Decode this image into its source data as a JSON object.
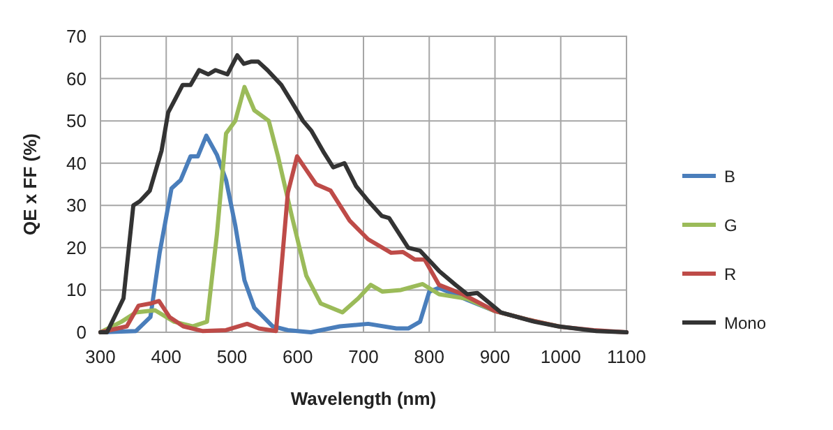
{
  "chart_data": {
    "type": "line",
    "xlabel": "Wavelength (nm)",
    "ylabel": "QE x FF (%)",
    "xlim": [
      300,
      1100
    ],
    "xticks": [
      300,
      400,
      500,
      600,
      700,
      800,
      900,
      1000,
      1100
    ],
    "ylim": [
      0,
      70
    ],
    "yticks": [
      0,
      10,
      20,
      30,
      40,
      50,
      60,
      70
    ],
    "grid": true,
    "legend": "right",
    "line_style": "solid",
    "series": [
      {
        "name": "B",
        "color": "#4a7ebb",
        "x": [
          300,
          354,
          376,
          390,
          408,
          422,
          437,
          448,
          461,
          477,
          491,
          505,
          519,
          534,
          562,
          585,
          620,
          664,
          707,
          750,
          768,
          786,
          800,
          815,
          830,
          860,
          900,
          950
        ],
        "values": [
          0,
          0.3,
          3.6,
          18.8,
          34,
          36,
          41.6,
          41.6,
          46.5,
          42,
          36,
          25.3,
          12.3,
          5.8,
          1.4,
          0.5,
          0,
          1.4,
          2,
          0.9,
          0.9,
          2.5,
          9.6,
          10.5,
          9.5,
          7.5,
          5,
          3
        ]
      },
      {
        "name": "G",
        "color": "#9bbb59",
        "x": [
          300,
          332,
          354,
          383,
          412,
          440,
          462,
          477,
          491,
          505,
          519,
          534,
          556,
          570,
          591,
          613,
          635,
          668,
          692,
          711,
          729,
          757,
          790,
          815,
          858,
          900,
          950,
          1000
        ],
        "values": [
          0,
          2.5,
          4.7,
          5.2,
          2.5,
          1.4,
          2.5,
          23,
          47,
          50,
          58,
          52.5,
          50,
          41.6,
          27.5,
          13.4,
          6.8,
          4.7,
          8,
          11.2,
          9.6,
          10,
          11.4,
          9,
          7.9,
          5,
          3,
          1.3
        ]
      },
      {
        "name": "R",
        "color": "#be4b48",
        "x": [
          300,
          340,
          358,
          376,
          389,
          405,
          426,
          455,
          491,
          523,
          541,
          567,
          585,
          599,
          613,
          628,
          650,
          679,
          707,
          742,
          760,
          778,
          793,
          815,
          851,
          900,
          950,
          1000,
          1050,
          1100
        ],
        "values": [
          0,
          1.4,
          6.3,
          6.8,
          7.4,
          3.6,
          1.4,
          0.3,
          0.5,
          2,
          0.9,
          0.3,
          33,
          41.6,
          38.4,
          35,
          33.5,
          26.4,
          22,
          18.8,
          19,
          17.2,
          17.2,
          11.2,
          9,
          5,
          3,
          1.3,
          0.5,
          0
        ]
      },
      {
        "name": "Mono",
        "color": "#333333",
        "x": [
          300,
          310,
          335,
          350,
          360,
          375,
          393,
          403,
          425,
          437,
          450,
          464,
          475,
          493,
          508,
          518,
          529,
          540,
          554,
          575,
          590,
          608,
          621,
          639,
          654,
          671,
          689,
          706,
          728,
          739,
          768,
          786,
          800,
          815,
          840,
          858,
          873,
          909,
          960,
          996,
          1054,
          1100
        ],
        "values": [
          0,
          0,
          8,
          30,
          31,
          33.5,
          43,
          52,
          58.5,
          58.5,
          62,
          61,
          62,
          61,
          65.5,
          63.5,
          64,
          64,
          62,
          58.5,
          54.7,
          50,
          47.6,
          42.7,
          39,
          40,
          34.5,
          31.3,
          27.5,
          27,
          20,
          19.3,
          17,
          14.5,
          11.2,
          9,
          9.3,
          4.7,
          2.5,
          1.4,
          0.3,
          0
        ]
      }
    ]
  }
}
